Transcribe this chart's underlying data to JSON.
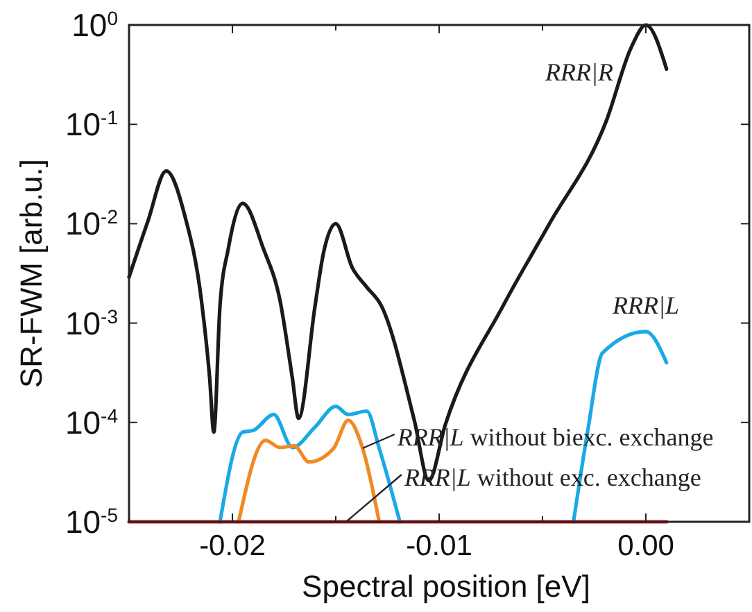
{
  "chart_data": {
    "type": "line",
    "xlabel": "Spectral position [eV]",
    "ylabel": "SR-FWM [arb.u.]",
    "log": "y",
    "xlim": [
      -0.025,
      0.005
    ],
    "ylim": [
      1e-05,
      1
    ],
    "xticks": [
      {
        "value": -0.025,
        "label": null
      },
      {
        "value": -0.02,
        "label": "-0.02"
      },
      {
        "value": -0.015,
        "label": null
      },
      {
        "value": -0.01,
        "label": "-0.01"
      },
      {
        "value": -0.005,
        "label": null
      },
      {
        "value": 0,
        "label": "0.00"
      },
      {
        "value": 0.005,
        "label": null
      }
    ],
    "yticks": [
      {
        "value": 1e-05,
        "label": "10$^{-5}$"
      },
      {
        "value": 0.0001,
        "label": "10$^{-4}$"
      },
      {
        "value": 0.001,
        "label": "10$^{-3}$"
      },
      {
        "value": 0.01,
        "label": "10$^{-2}$"
      },
      {
        "value": 0.1,
        "label": "10$^{-1}$"
      },
      {
        "value": 1,
        "label": "10$^{0}$"
      }
    ],
    "grid": false,
    "marker": "none",
    "line_style": "solid",
    "series": [
      {
        "color": "#1a1a1a",
        "x": [
          -0.025,
          -0.0241,
          -0.0232,
          -0.0223,
          -0.0215,
          -0.0211,
          -0.0209,
          -0.0206,
          -0.0202,
          -0.0195,
          -0.0185,
          -0.0177,
          -0.0171,
          -0.0168,
          -0.016,
          -0.0156,
          -0.015,
          -0.0142,
          -0.0135,
          -0.0128,
          -0.0112,
          -0.0105,
          -0.0097,
          -0.0069,
          -0.0047,
          -0.0019,
          -0.0007,
          0,
          0.001
        ],
        "values": [
          0.0029,
          0.0104,
          0.034,
          0.012,
          0.0017,
          0.00028,
          8e-05,
          0.0015,
          0.0056,
          0.016,
          0.0056,
          0.0017,
          0.00028,
          0.00011,
          0.0015,
          0.005,
          0.01,
          0.0036,
          0.0023,
          0.0015,
          0.000105,
          2.6e-05,
          9.5e-05,
          0.0015,
          0.0097,
          0.11,
          0.6,
          1,
          0.36
        ]
      },
      {
        "color": "#1ba9e6",
        "x": [
          -0.0206,
          -0.0195,
          -0.019,
          -0.018,
          -0.0171,
          -0.016,
          -0.015,
          -0.0144,
          -0.0135,
          -0.0129,
          -0.0119
        ],
        "values": [
          1e-05,
          8e-05,
          8.3e-05,
          0.00012,
          5.6e-05,
          9e-05,
          0.000145,
          0.00012,
          0.00013,
          5.5e-05,
          1e-05
        ]
      },
      {
        "color": "#1ba9e6",
        "x": [
          -0.0035,
          -0.0028,
          -0.0021,
          0,
          0.001
        ],
        "values": [
          1e-05,
          8.5e-05,
          0.0005,
          0.00082,
          0.0004
        ]
      },
      {
        "color": "#f08a24",
        "x": [
          -0.0197,
          -0.0184,
          -0.0177,
          -0.017,
          -0.0163,
          -0.0151,
          -0.0144,
          -0.0137,
          -0.0129
        ],
        "values": [
          1e-05,
          6.6e-05,
          5.6e-05,
          5.8e-05,
          4e-05,
          5.5e-05,
          0.000105,
          5.5e-05,
          1e-05
        ]
      },
      {
        "color": "#e8202a",
        "x": [
          -0.025,
          0.001
        ],
        "values": [
          1e-05,
          1e-05
        ]
      }
    ],
    "annotations": [
      {
        "text": "RRR|R",
        "x": 0,
        "y": 1
      },
      {
        "text": "RRR|L",
        "x": 0,
        "y": 0.00082
      },
      {
        "text": "RRR|L without biexc. exchange",
        "x": -0.0137,
        "y": 5.5e-05
      },
      {
        "text": "RRR|L without exc. exchange",
        "x": -0.0145,
        "y": 1e-05
      }
    ]
  }
}
